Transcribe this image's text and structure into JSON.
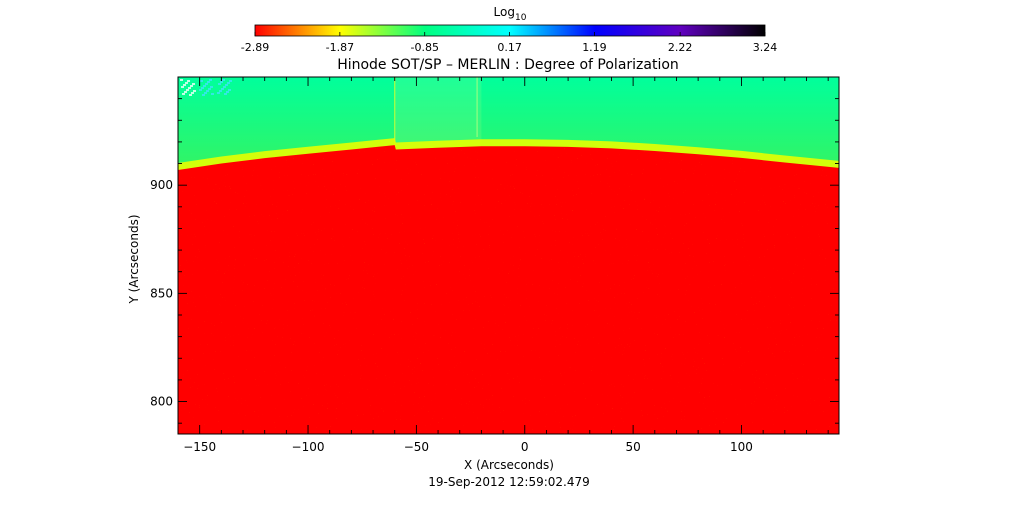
{
  "chart_data": {
    "type": "heatmap",
    "title": "Hinode SOT/SP – MERLIN : Degree of Polarization",
    "xlabel": "X (Arcseconds)",
    "ylabel": "Y (Arcseconds)",
    "timestamp": "19-Sep-2012 12:59:02.479",
    "xlim": [
      -160,
      145
    ],
    "ylim": [
      785,
      950
    ],
    "x_ticks": [
      -150,
      -100,
      -50,
      0,
      50,
      100
    ],
    "y_ticks": [
      800,
      850,
      900
    ],
    "colorbar": {
      "label": "Log",
      "label_subscript": "10",
      "range": [
        -2.89,
        3.24
      ],
      "ticks": [
        -2.89,
        -1.87,
        -0.85,
        0.17,
        1.19,
        2.22,
        3.24
      ],
      "colormap": [
        "#ff0000",
        "#ffff00",
        "#00ff80",
        "#00ffff",
        "#0000ff",
        "#6000c0",
        "#000000"
      ]
    },
    "limb_profile": {
      "x": [
        -160,
        -140,
        -120,
        -100,
        -80,
        -60,
        -59.5,
        -40,
        -20,
        0,
        20,
        40,
        60,
        80,
        100,
        120,
        145
      ],
      "y": [
        907,
        910,
        912.5,
        914.5,
        916.5,
        918.5,
        916.5,
        917.3,
        918,
        918,
        917.7,
        917,
        915.8,
        914.3,
        912.6,
        910.5,
        908
      ]
    }
  }
}
